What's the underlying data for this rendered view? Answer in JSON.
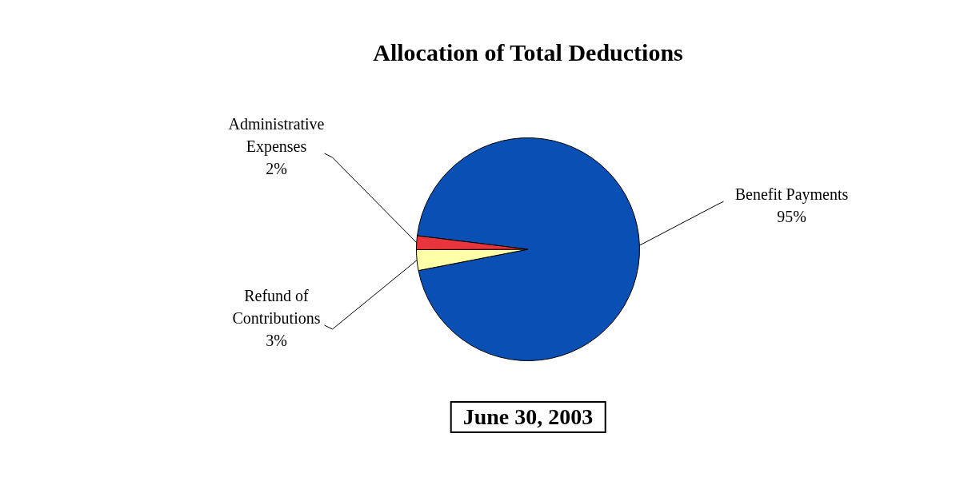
{
  "chart_data": {
    "type": "pie",
    "title": "Allocation of Total Deductions",
    "categories": [
      "Benefit Payments",
      "Refund of Contributions",
      "Administrative Expenses"
    ],
    "values": [
      95,
      3,
      2
    ],
    "value_labels": [
      "95%",
      "3%",
      "2%"
    ],
    "colors": [
      "#0a50b4",
      "#ffffa8",
      "#e8343c"
    ],
    "legend": false,
    "annotations": [
      "June 30, 2003"
    ]
  }
}
